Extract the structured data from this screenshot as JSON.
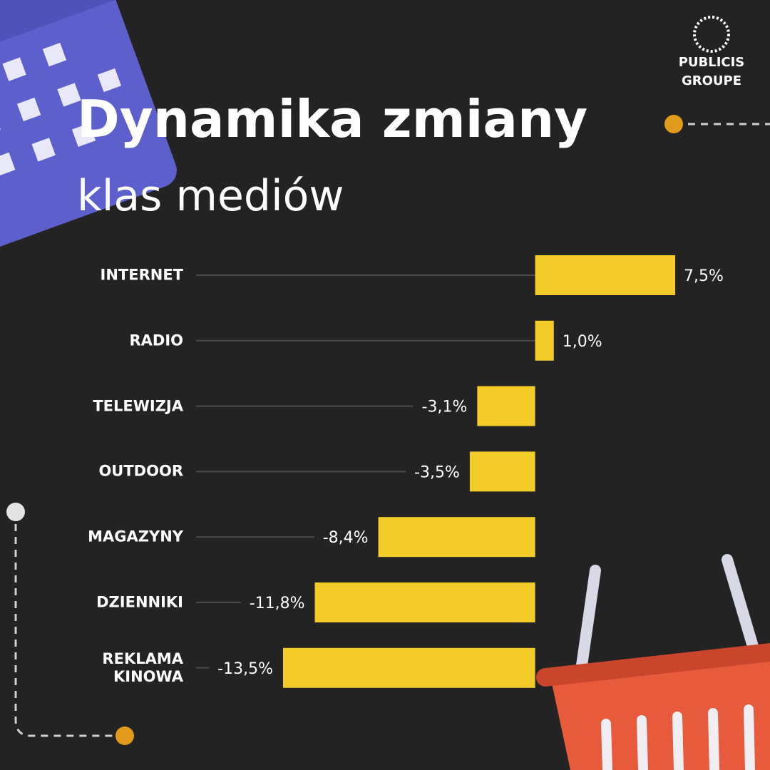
{
  "logo": {
    "line1": "PUBLICIS",
    "line2": "GROUPE"
  },
  "chart_data": {
    "type": "bar",
    "orientation": "horizontal",
    "title": "Dynamika zmiany",
    "subtitle": "klas mediów",
    "categories": [
      "INTERNET",
      "RADIO",
      "TELEWIZJA",
      "OUTDOOR",
      "MAGAZYNY",
      "DZIENNIKI",
      "REKLAMA KINOWA"
    ],
    "values": [
      7.5,
      1.0,
      -3.1,
      -3.5,
      -8.4,
      -11.8,
      -13.5
    ],
    "value_labels": [
      "7,5%",
      "1,0%",
      "-3,1%",
      "-3,5%",
      "-8,4%",
      "-11,8%",
      "-13,5%"
    ],
    "color": "#f4cc2a"
  }
}
